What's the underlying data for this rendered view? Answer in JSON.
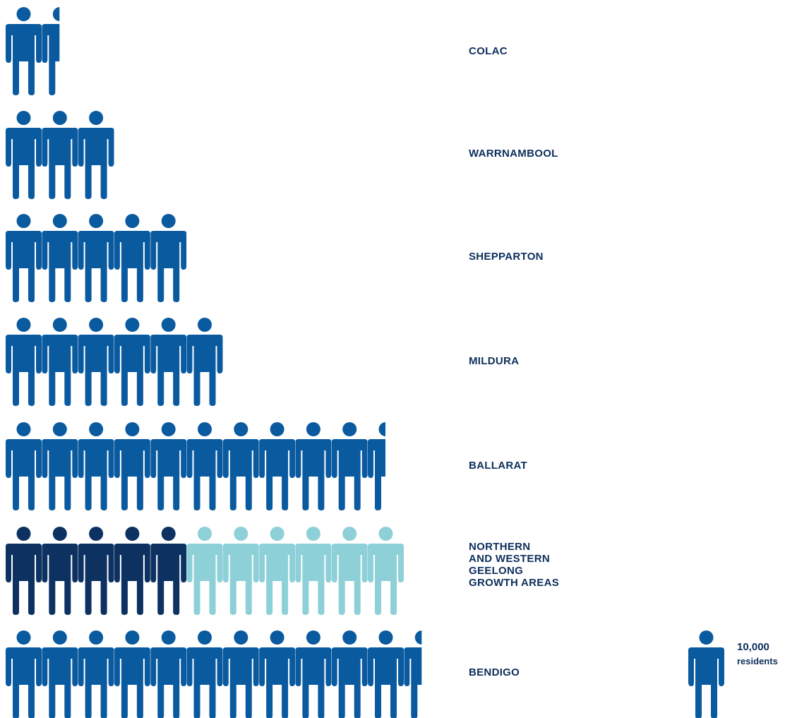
{
  "colors": {
    "base": "#0a5aa0",
    "existing": "#0d3161",
    "growth": "#8dd0d8",
    "label": "#0e2f5c"
  },
  "legend": {
    "value": "10,000",
    "unit": "residents",
    "icon": "person-icon"
  },
  "chart_data": {
    "type": "bar",
    "unit": "10,000 residents per icon",
    "categories": [
      "COLAC",
      "WARRNAMBOOL",
      "SHEPPARTON",
      "MILDURA",
      "BALLARAT",
      "NORTHERN\nAND WESTERN\nGEELONG\nGROWTH AREAS",
      "BENDIGO"
    ],
    "values": [
      1.5,
      3,
      5,
      6,
      10.5,
      11,
      11.5
    ],
    "segments": [
      null,
      null,
      null,
      null,
      null,
      [
        {
          "value": 5,
          "color": "existing"
        },
        {
          "value": 6,
          "color": "growth"
        }
      ],
      null
    ]
  }
}
